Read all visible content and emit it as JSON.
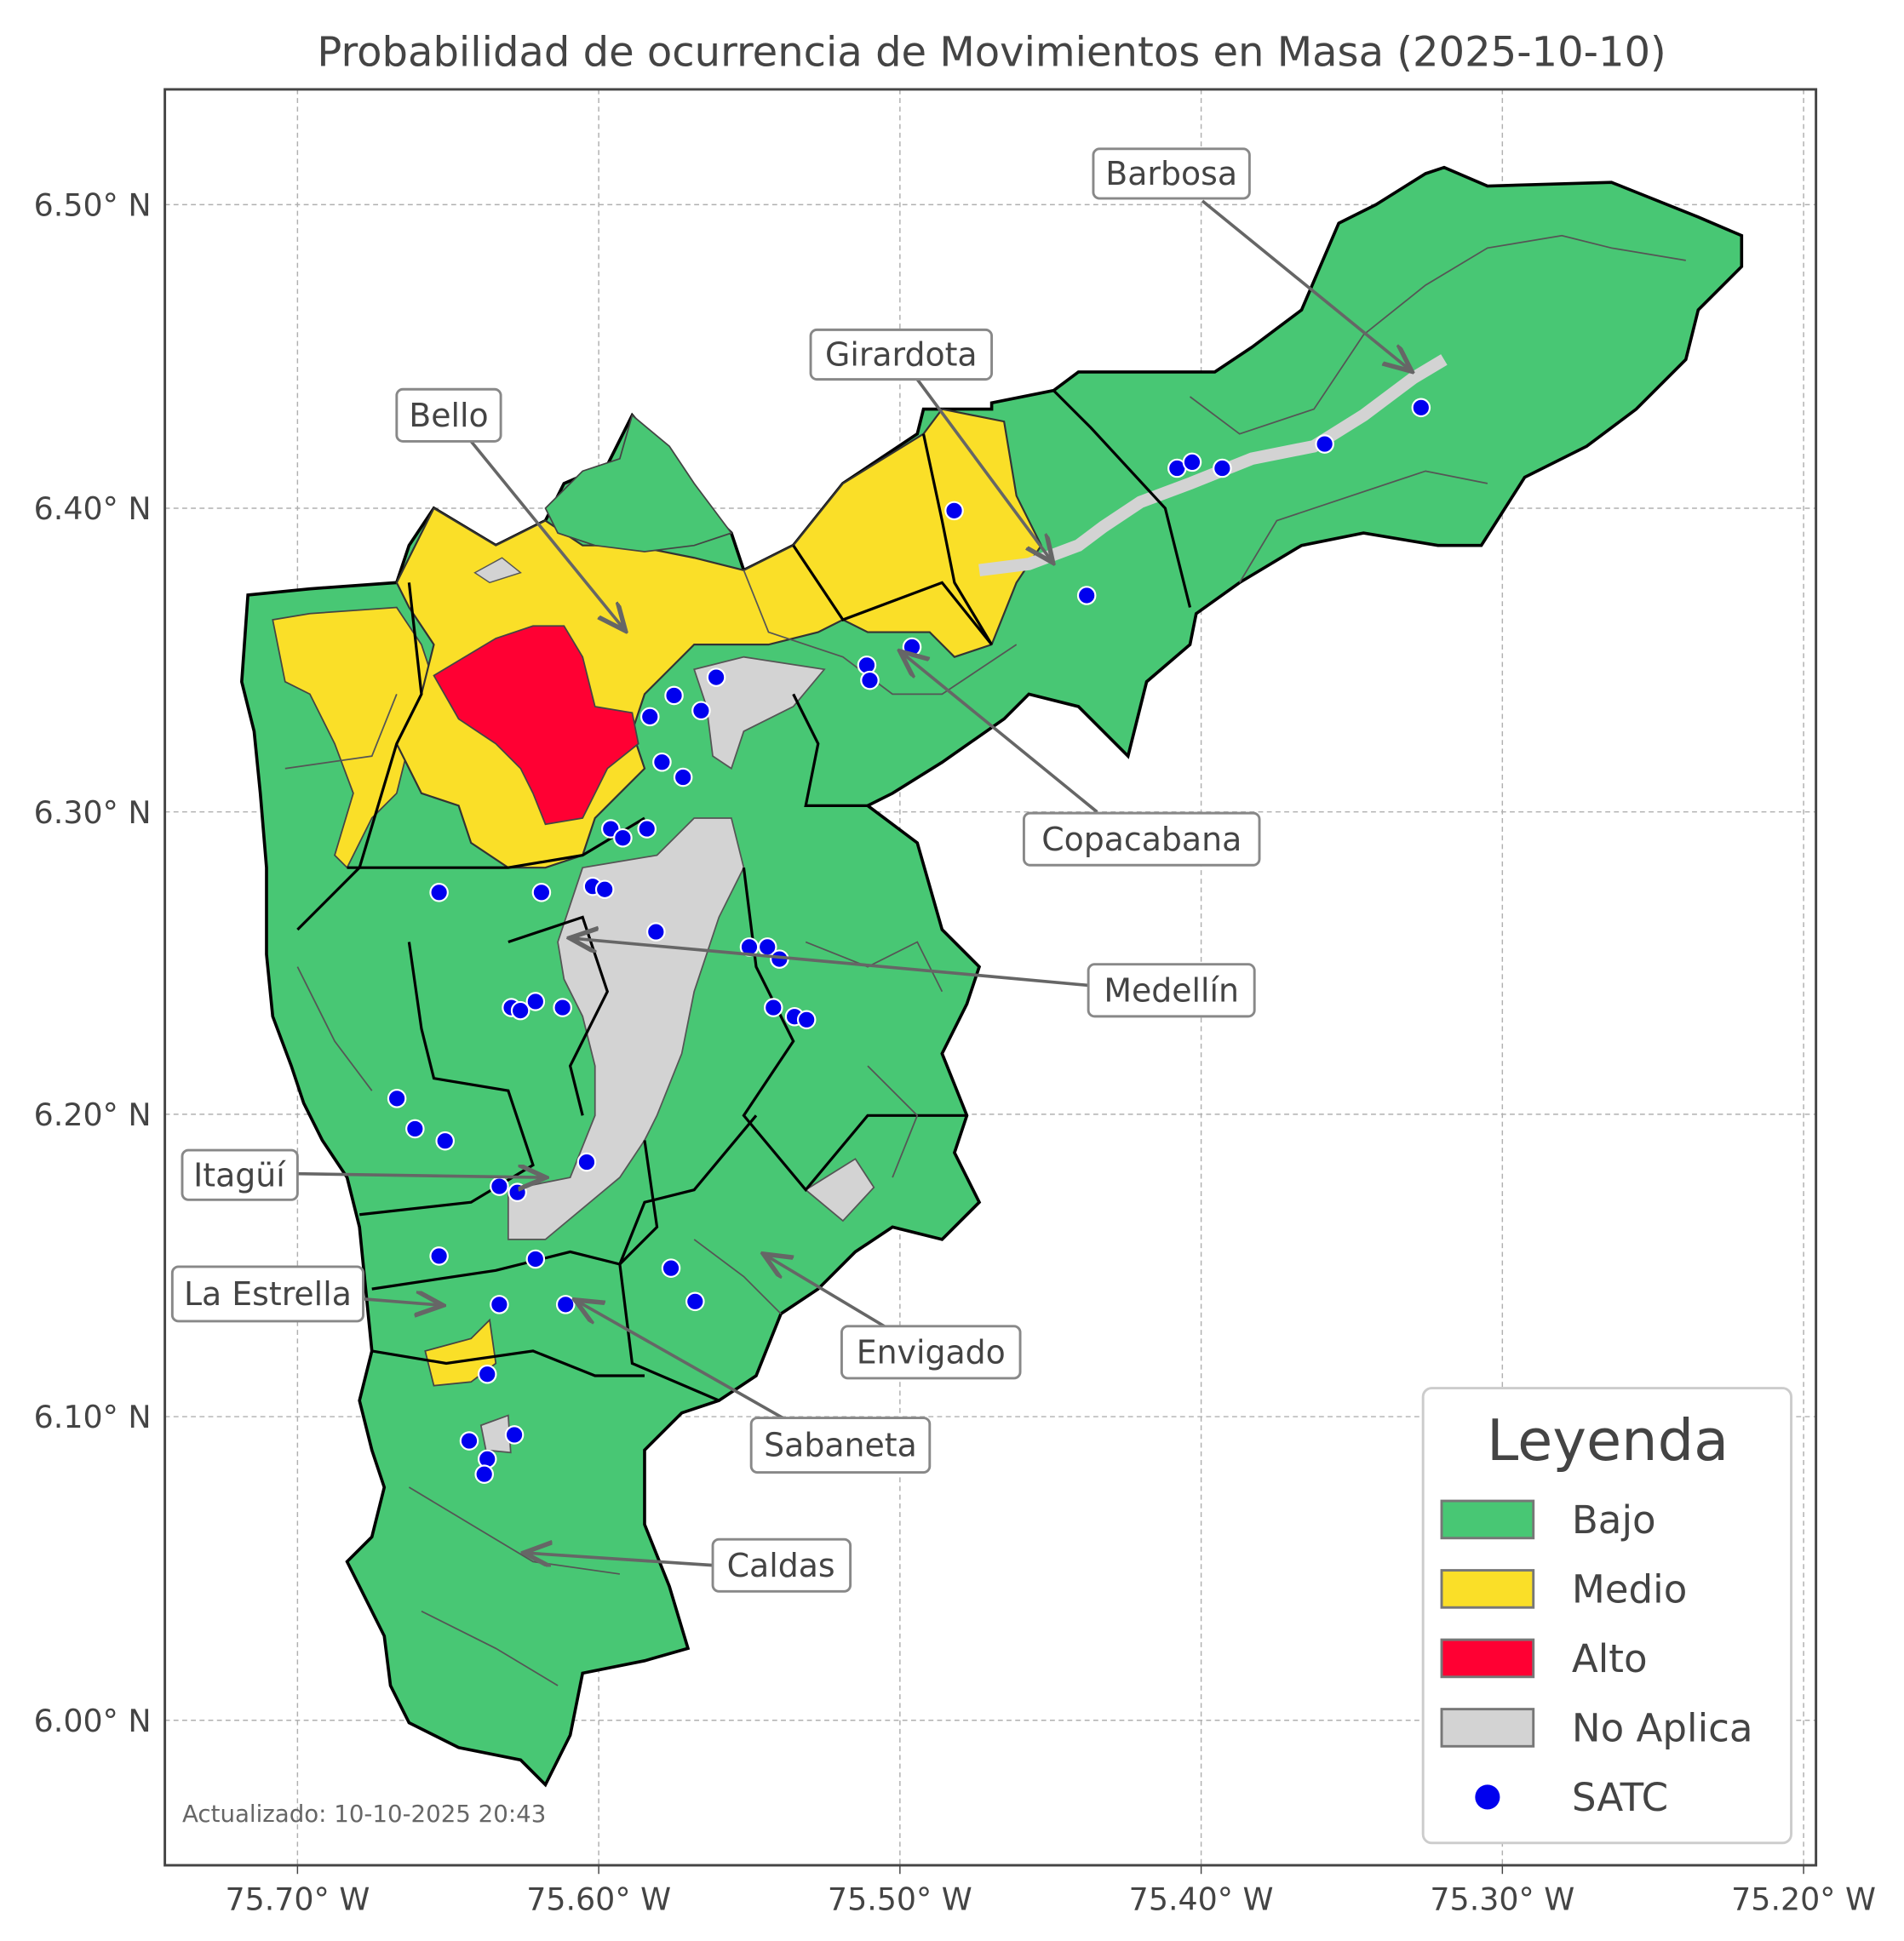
{
  "title": "Probabilidad de ocurrencia de Movimientos en Masa (2025-10-10)",
  "footer": "Actualizado: 10-10-2025 20:43",
  "axes": {
    "x_ticks": [
      "75.70° W",
      "75.60° W",
      "75.50° W",
      "75.40° W",
      "75.30° W",
      "75.20° W"
    ],
    "y_ticks": [
      "6.50° N",
      "6.40° N",
      "6.30° N",
      "6.20° N",
      "6.10° N",
      "6.00° N"
    ],
    "grid": true
  },
  "colors": {
    "bajo": "#48c774",
    "medio": "#fadf28",
    "alto": "#ff0033",
    "no_aplica": "#d3d3d3",
    "satc": "#0000ee"
  },
  "legend": {
    "title": "Leyenda",
    "placement": "bottom-right",
    "items": [
      {
        "label": "Bajo",
        "color": "#48c774"
      },
      {
        "label": "Medio",
        "color": "#fadf28"
      },
      {
        "label": "Alto",
        "color": "#ff0033"
      },
      {
        "label": "No Aplica",
        "color": "#d3d3d3"
      },
      {
        "label": "SATC",
        "color": "#0000ee"
      }
    ]
  },
  "municipalities": [
    {
      "name": "Barbosa"
    },
    {
      "name": "Girardota"
    },
    {
      "name": "Bello"
    },
    {
      "name": "Copacabana"
    },
    {
      "name": "Medellín"
    },
    {
      "name": "Itagüí"
    },
    {
      "name": "La Estrella"
    },
    {
      "name": "Envigado"
    },
    {
      "name": "Sabaneta"
    },
    {
      "name": "Caldas"
    }
  ],
  "satc_stations": [
    [
      -75.482,
      6.399
    ],
    [
      -75.438,
      6.371
    ],
    [
      -75.408,
      6.413
    ],
    [
      -75.403,
      6.415
    ],
    [
      -75.393,
      6.413
    ],
    [
      -75.359,
      6.421
    ],
    [
      -75.327,
      6.433
    ],
    [
      -75.511,
      6.348
    ],
    [
      -75.51,
      6.343
    ],
    [
      -75.496,
      6.354
    ],
    [
      -75.561,
      6.344
    ],
    [
      -75.575,
      6.338
    ],
    [
      -75.566,
      6.333
    ],
    [
      -75.583,
      6.331
    ],
    [
      -75.579,
      6.316
    ],
    [
      -75.572,
      6.311
    ],
    [
      -75.596,
      6.294
    ],
    [
      -75.592,
      6.291
    ],
    [
      -75.584,
      6.294
    ],
    [
      -75.653,
      6.273
    ],
    [
      -75.619,
      6.273
    ],
    [
      -75.602,
      6.275
    ],
    [
      -75.598,
      6.274
    ],
    [
      -75.581,
      6.26
    ],
    [
      -75.55,
      6.255
    ],
    [
      -75.544,
      6.255
    ],
    [
      -75.54,
      6.251
    ],
    [
      -75.542,
      6.235
    ],
    [
      -75.535,
      6.232
    ],
    [
      -75.531,
      6.231
    ],
    [
      -75.621,
      6.237
    ],
    [
      -75.629,
      6.235
    ],
    [
      -75.626,
      6.234
    ],
    [
      -75.612,
      6.235
    ],
    [
      -75.667,
      6.205
    ],
    [
      -75.661,
      6.195
    ],
    [
      -75.651,
      6.191
    ],
    [
      -75.604,
      6.184
    ],
    [
      -75.633,
      6.176
    ],
    [
      -75.627,
      6.174
    ],
    [
      -75.653,
      6.153
    ],
    [
      -75.621,
      6.152
    ],
    [
      -75.576,
      6.149
    ],
    [
      -75.568,
      6.138
    ],
    [
      -75.633,
      6.137
    ],
    [
      -75.611,
      6.137
    ],
    [
      -75.637,
      6.114
    ],
    [
      -75.643,
      6.092
    ],
    [
      -75.637,
      6.086
    ],
    [
      -75.638,
      6.081
    ],
    [
      -75.628,
      6.094
    ]
  ]
}
